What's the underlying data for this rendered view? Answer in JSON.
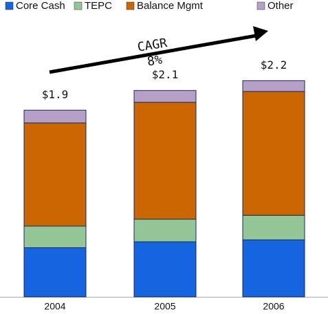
{
  "chart_data": {
    "type": "stacked-bar",
    "categories": [
      "2004",
      "2005",
      "2006"
    ],
    "series": [
      {
        "name": "Core Cash",
        "color": "#1565e0",
        "values": [
          0.5,
          0.56,
          0.58
        ]
      },
      {
        "name": "TEPC",
        "color": "#93c597",
        "values": [
          0.22,
          0.23,
          0.25
        ]
      },
      {
        "name": "Balance Mgmt",
        "color": "#cc6600",
        "values": [
          1.05,
          1.19,
          1.26
        ]
      },
      {
        "name": "Other",
        "color": "#b7a0c8",
        "values": [
          0.13,
          0.12,
          0.11
        ]
      }
    ],
    "totals": [
      1.9,
      2.1,
      2.2
    ],
    "total_labels": [
      "$1.9",
      "$2.1",
      "$2.2"
    ],
    "annotation": {
      "title": "CAGR",
      "value": "8%"
    }
  }
}
